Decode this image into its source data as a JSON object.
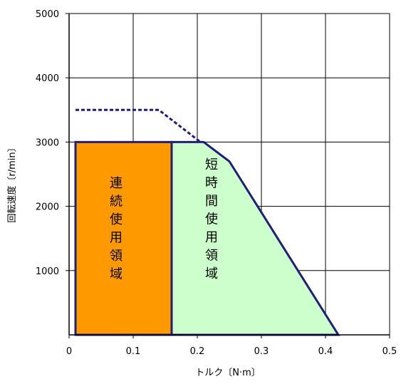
{
  "chart_data": {
    "type": "area",
    "title": "",
    "xlabel": "トルク〔N·m〕",
    "ylabel": "回転速度〔r/min〕",
    "xlim": [
      0,
      0.5
    ],
    "ylim": [
      0,
      5000
    ],
    "x_ticks": [
      "0",
      "0.1",
      "0.2",
      "0.3",
      "0.4",
      "0.5"
    ],
    "y_ticks": [
      "1000",
      "2000",
      "3000",
      "4000",
      "5000"
    ],
    "grid": true,
    "legend": "none",
    "series": [
      {
        "style": "filled-region",
        "color": "#ff9900",
        "outline": "#1f1f7a",
        "points": [
          [
            0.01,
            0
          ],
          [
            0.01,
            3000
          ],
          [
            0.16,
            3000
          ],
          [
            0.16,
            0
          ]
        ]
      },
      {
        "style": "filled-region",
        "color": "#ccffcc",
        "outline": "#1f1f7a",
        "points": [
          [
            0.16,
            0
          ],
          [
            0.16,
            3000
          ],
          [
            0.21,
            3000
          ],
          [
            0.25,
            2700
          ],
          [
            0.42,
            0
          ]
        ]
      },
      {
        "style": "dashed-line",
        "color": "#1f1f7a",
        "points": [
          [
            0.01,
            3500
          ],
          [
            0.14,
            3500
          ],
          [
            0.205,
            3000
          ]
        ]
      }
    ],
    "annotations": [
      {
        "text": "連続使用領域",
        "x": 0.07,
        "y": 1700,
        "orientation": "vertical"
      },
      {
        "text": "短時間使用領域",
        "x": 0.21,
        "y": 1700,
        "orientation": "vertical"
      }
    ]
  }
}
